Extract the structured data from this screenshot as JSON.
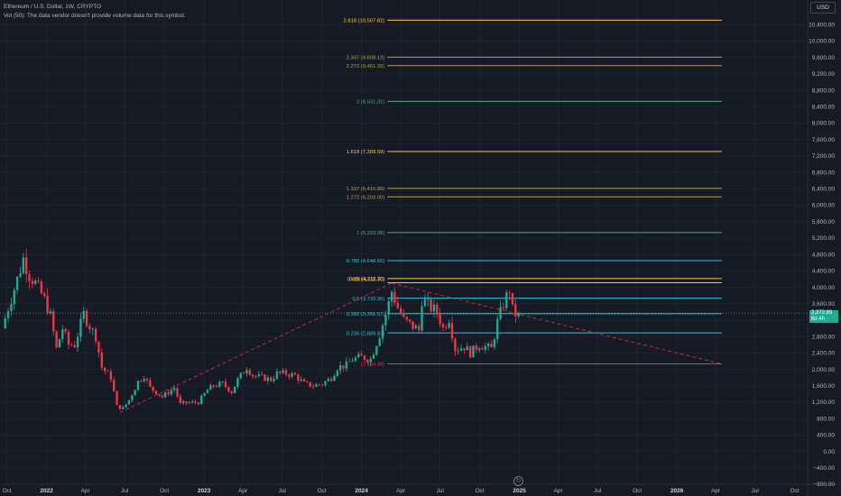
{
  "legend": {
    "symbol": "Ethereum / U.S. Dollar, 1W, CRYPTO",
    "volume_note": "Vol (50): The data vendor doesn't provide volume data for this symbol."
  },
  "currency_button": "USD",
  "last_price": {
    "value": "3,372.89",
    "countdown": "6d 4h"
  },
  "colors": {
    "background": "#161a25",
    "up_candle": "#22ab94",
    "down_candle": "#f23645",
    "grid": "#1f2330",
    "trend_line": "#f23645",
    "axis_text": "#b2b5be"
  },
  "icons": {
    "bottom": "go-to-realtime-icon"
  },
  "chart_data": {
    "type": "candlestick",
    "timeframe": "1W",
    "y_axis": {
      "range": [
        -800,
        11000
      ],
      "ticks": [
        -800,
        -400,
        0,
        400,
        800,
        1200,
        1600,
        2000,
        2400,
        2800,
        3200,
        3600,
        4000,
        4400,
        4800,
        5200,
        5600,
        6000,
        6400,
        6800,
        7200,
        7600,
        8000,
        8400,
        8800,
        9200,
        9600,
        10000,
        10400
      ],
      "tick_labels": [
        "−800.00",
        "−400.00",
        "0.00",
        "400.00",
        "800.00",
        "1,200.00",
        "1,600.00",
        "2,000.00",
        "2,400.00",
        "2,800.00",
        "3,200.00",
        "3,600.00",
        "4,000.00",
        "4,400.00",
        "4,800.00",
        "5,200.00",
        "5,600.00",
        "6,000.00",
        "6,400.00",
        "6,800.00",
        "7,200.00",
        "7,600.00",
        "8,000.00",
        "8,400.00",
        "8,800.00",
        "9,200.00",
        "9,600.00",
        "10,000.00",
        "10,400.00"
      ]
    },
    "x_axis": {
      "range": [
        "2021-09-15",
        "2026-10-31"
      ],
      "ticks": [
        {
          "date": "2021-10-01",
          "label": "Oct",
          "bold": false
        },
        {
          "date": "2022-01-01",
          "label": "2022",
          "bold": true
        },
        {
          "date": "2022-04-01",
          "label": "Apr",
          "bold": false
        },
        {
          "date": "2022-07-01",
          "label": "Jul",
          "bold": false
        },
        {
          "date": "2022-10-01",
          "label": "Oct",
          "bold": false
        },
        {
          "date": "2023-01-01",
          "label": "2023",
          "bold": true
        },
        {
          "date": "2023-04-01",
          "label": "Apr",
          "bold": false
        },
        {
          "date": "2023-07-01",
          "label": "Jul",
          "bold": false
        },
        {
          "date": "2023-10-01",
          "label": "Oct",
          "bold": false
        },
        {
          "date": "2024-01-01",
          "label": "2024",
          "bold": true
        },
        {
          "date": "2024-04-01",
          "label": "Apr",
          "bold": false
        },
        {
          "date": "2024-07-01",
          "label": "Jul",
          "bold": false
        },
        {
          "date": "2024-10-01",
          "label": "Oct",
          "bold": false
        },
        {
          "date": "2025-01-01",
          "label": "2025",
          "bold": true
        },
        {
          "date": "2025-04-01",
          "label": "Apr",
          "bold": false
        },
        {
          "date": "2025-07-01",
          "label": "Jul",
          "bold": false
        },
        {
          "date": "2025-10-01",
          "label": "Oct",
          "bold": false
        },
        {
          "date": "2026-01-01",
          "label": "2026",
          "bold": true
        },
        {
          "date": "2026-04-01",
          "label": "Apr",
          "bold": false
        },
        {
          "date": "2026-07-01",
          "label": "Jul",
          "bold": false
        },
        {
          "date": "2026-10-01",
          "label": "Oct",
          "bold": false
        }
      ]
    },
    "price_path": [
      [
        "2021-09-20",
        3000
      ],
      [
        "2021-10-04",
        3500
      ],
      [
        "2021-10-25",
        4200
      ],
      [
        "2021-11-08",
        4700
      ],
      [
        "2021-11-22",
        4300
      ],
      [
        "2021-12-06",
        4100
      ],
      [
        "2021-12-27",
        3700
      ],
      [
        "2022-01-10",
        3300
      ],
      [
        "2022-01-24",
        2500
      ],
      [
        "2022-02-07",
        3000
      ],
      [
        "2022-02-21",
        2600
      ],
      [
        "2022-03-07",
        2600
      ],
      [
        "2022-03-28",
        3350
      ],
      [
        "2022-04-11",
        3050
      ],
      [
        "2022-04-25",
        2800
      ],
      [
        "2022-05-09",
        2050
      ],
      [
        "2022-05-30",
        1800
      ],
      [
        "2022-06-13",
        1100
      ],
      [
        "2022-06-27",
        1050
      ],
      [
        "2022-07-11",
        1250
      ],
      [
        "2022-08-01",
        1700
      ],
      [
        "2022-08-15",
        1850
      ],
      [
        "2022-08-29",
        1550
      ],
      [
        "2022-09-12",
        1450
      ],
      [
        "2022-09-26",
        1330
      ],
      [
        "2022-10-24",
        1550
      ],
      [
        "2022-11-07",
        1150
      ],
      [
        "2022-11-21",
        1180
      ],
      [
        "2022-12-19",
        1200
      ],
      [
        "2023-01-09",
        1500
      ],
      [
        "2023-01-23",
        1600
      ],
      [
        "2023-02-13",
        1650
      ],
      [
        "2023-03-06",
        1450
      ],
      [
        "2023-03-20",
        1750
      ],
      [
        "2023-04-10",
        2050
      ],
      [
        "2023-04-24",
        1850
      ],
      [
        "2023-05-15",
        1800
      ],
      [
        "2023-06-05",
        1750
      ],
      [
        "2023-06-19",
        1900
      ],
      [
        "2023-07-10",
        1900
      ],
      [
        "2023-07-31",
        1850
      ],
      [
        "2023-08-21",
        1650
      ],
      [
        "2023-09-11",
        1600
      ],
      [
        "2023-10-02",
        1650
      ],
      [
        "2023-10-23",
        1800
      ],
      [
        "2023-11-06",
        2050
      ],
      [
        "2023-11-27",
        2100
      ],
      [
        "2023-12-11",
        2250
      ],
      [
        "2024-01-01",
        2300
      ],
      [
        "2024-01-22",
        2250
      ],
      [
        "2024-02-12",
        2850
      ],
      [
        "2024-03-04",
        3600
      ],
      [
        "2024-03-11",
        3900
      ],
      [
        "2024-03-25",
        3500
      ],
      [
        "2024-04-08",
        3200
      ],
      [
        "2024-04-22",
        3100
      ],
      [
        "2024-05-13",
        2950
      ],
      [
        "2024-05-20",
        3700
      ],
      [
        "2024-06-10",
        3500
      ],
      [
        "2024-06-24",
        3400
      ],
      [
        "2024-07-08",
        3000
      ],
      [
        "2024-07-22",
        3250
      ],
      [
        "2024-08-05",
        2500
      ],
      [
        "2024-08-26",
        2550
      ],
      [
        "2024-09-09",
        2400
      ],
      [
        "2024-09-30",
        2600
      ],
      [
        "2024-10-14",
        2550
      ],
      [
        "2024-10-28",
        2500
      ],
      [
        "2024-11-11",
        3150
      ],
      [
        "2024-11-25",
        3600
      ],
      [
        "2024-12-09",
        3950
      ],
      [
        "2024-12-16",
        3450
      ],
      [
        "2024-12-23",
        3350
      ],
      [
        "2024-12-30",
        3380
      ]
    ],
    "fibonacci": {
      "levels": [
        {
          "label": "2.618 (10,507.82)",
          "price": 10507.82,
          "color": "#f7c948"
        },
        {
          "label": "2.337 (9,608.12)",
          "price": 9608.12,
          "color": "#b6a04c"
        },
        {
          "label": "2.272 (9,401.33)",
          "price": 9401.33,
          "color": "#b6a04c"
        },
        {
          "label": "2 (8,531.31)",
          "price": 8531.31,
          "color": "#4caf7d"
        },
        {
          "label": "1.618 (7,309.59)",
          "price": 7309.59,
          "color": "#f7c948"
        },
        {
          "label": "1.337 (6,410.89)",
          "price": 6410.89,
          "color": "#b6a04c"
        },
        {
          "label": "1.272 (6,203.00)",
          "price": 6203.0,
          "color": "#b6a04c"
        },
        {
          "label": "1 (5,333.08)",
          "price": 5333.08,
          "color": "#4caf7d"
        },
        {
          "label": "0.786 (4,648.66)",
          "price": 4648.66,
          "color": "#26c6da"
        },
        {
          "label": "0.65 (4,213.70)",
          "price": 4213.7,
          "color": "#f7c948"
        },
        {
          "label": "0.618 (4,111.30)",
          "price": 4111.3,
          "color": "#f7c948"
        },
        {
          "label": "0.5 (3,733.96)",
          "price": 3733.96,
          "color": "#26c6da"
        },
        {
          "label": "0.382 (3,356.57)",
          "price": 3356.57,
          "color": "#26c6da"
        },
        {
          "label": "0.236 (2,889.63)",
          "price": 2889.63,
          "color": "#26c6da"
        },
        {
          "label": "(2,134.38)",
          "price": 2134.38,
          "color": "#f23645"
        }
      ],
      "start_date": "2024-03-01",
      "end_date": "2026-04-15"
    },
    "trend_lines": [
      {
        "from": [
          "2022-06-20",
          950
        ],
        "to": [
          "2024-03-11",
          4100
        ]
      },
      {
        "from": [
          "2024-03-11",
          4100
        ],
        "to": [
          "2026-04-15",
          2134
        ]
      }
    ],
    "last_price": 3372.89
  }
}
